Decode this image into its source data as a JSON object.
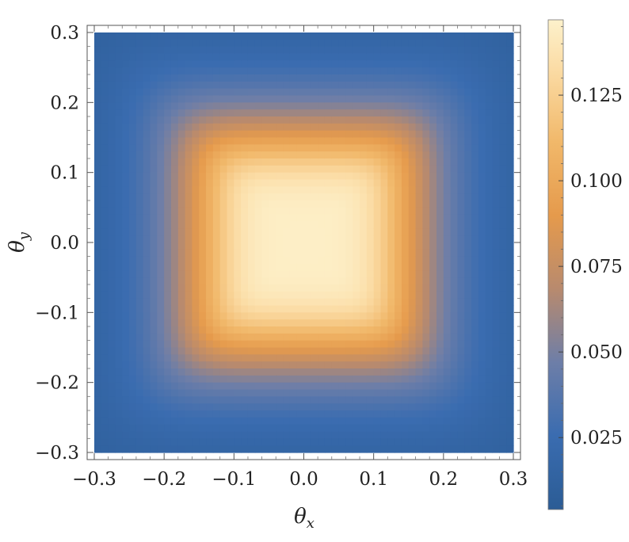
{
  "chart_data": {
    "type": "heatmap",
    "xlabel": {
      "symbol": "θ",
      "subscript": "x"
    },
    "ylabel": {
      "symbol": "θ",
      "subscript": "y"
    },
    "xlim": [
      -0.3,
      0.3
    ],
    "ylim": [
      -0.3,
      0.3
    ],
    "x_ticks": [
      "−0.3",
      "−0.2",
      "−0.1",
      "0.0",
      "0.1",
      "0.2",
      "0.3"
    ],
    "x_tick_values": [
      -0.3,
      -0.2,
      -0.1,
      0.0,
      0.1,
      0.2,
      0.3
    ],
    "y_ticks": [
      "−0.3",
      "−0.2",
      "−0.1",
      "0.0",
      "0.1",
      "0.2",
      "0.3"
    ],
    "y_tick_values": [
      -0.3,
      -0.2,
      -0.1,
      0.0,
      0.1,
      0.2,
      0.3
    ],
    "field": {
      "shape": "rounded-square",
      "center": [
        0.0,
        0.0
      ],
      "peak_value": 0.145,
      "edge_value": 0.005,
      "half_width": 0.17
    },
    "colorbar": {
      "range": [
        0.004,
        0.147
      ],
      "ticks": [
        "0.025",
        "0.050",
        "0.075",
        "0.100",
        "0.125"
      ],
      "tick_values": [
        0.025,
        0.05,
        0.075,
        0.1,
        0.125
      ],
      "colormap": [
        [
          0.0,
          "#2b5c95"
        ],
        [
          0.15,
          "#3a6cb0"
        ],
        [
          0.3,
          "#6d7ea8"
        ],
        [
          0.45,
          "#b88a6e"
        ],
        [
          0.6,
          "#e59a4c"
        ],
        [
          0.75,
          "#f1b86a"
        ],
        [
          0.9,
          "#fbdca5"
        ],
        [
          1.0,
          "#fdf1cb"
        ]
      ]
    }
  }
}
